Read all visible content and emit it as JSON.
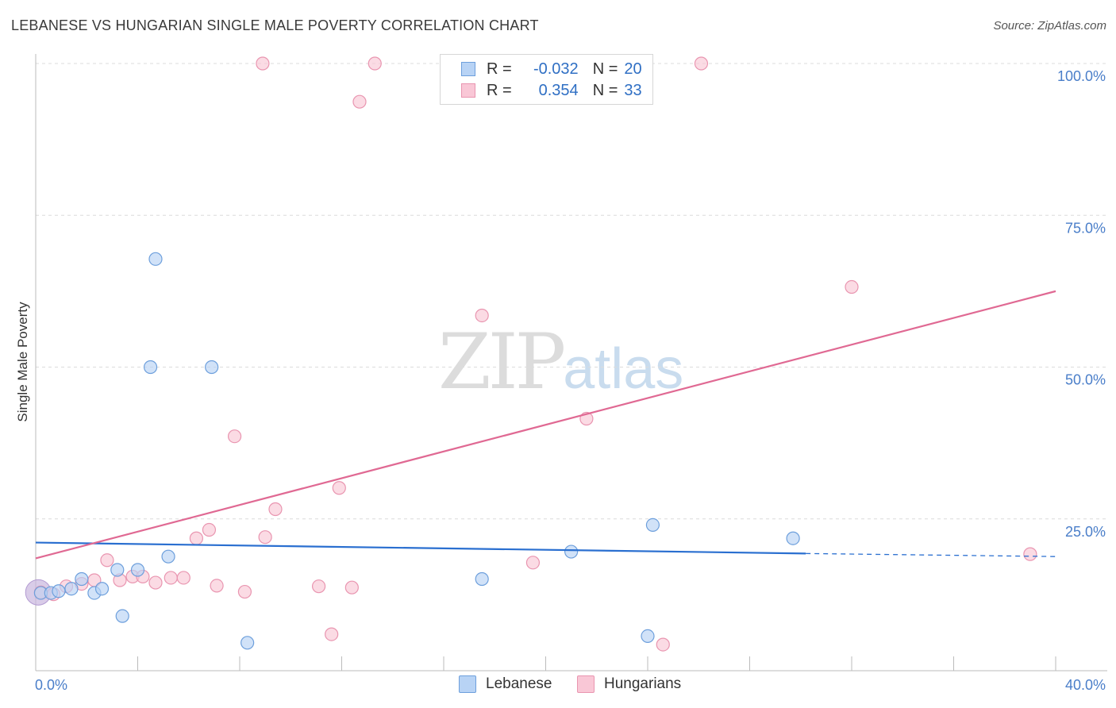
{
  "title": "LEBANESE VS HUNGARIAN SINGLE MALE POVERTY CORRELATION CHART",
  "source": "Source: ZipAtlas.com",
  "watermark": {
    "zip": "ZIP",
    "atlas": "atlas"
  },
  "colors": {
    "blue_fill": "#b8d3f5",
    "blue_stroke": "#6d9fdc",
    "blue_line": "#2a6fd0",
    "pink_fill": "#f9c7d6",
    "pink_stroke": "#e995b0",
    "pink_line": "#e06993",
    "axis_text": "#4a7ec9"
  },
  "legend": {
    "rows": [
      {
        "r_label": "R =",
        "r_value": "-0.032",
        "n_label": "N =",
        "n_value": "20",
        "series": "blue"
      },
      {
        "r_label": "R =",
        "r_value": "0.354",
        "n_label": "N =",
        "n_value": "33",
        "series": "pink"
      }
    ]
  },
  "bottom_legend": {
    "lebanese": "Lebanese",
    "hungarians": "Hungarians"
  },
  "chart_data": {
    "type": "scatter",
    "title": "LEBANESE VS HUNGARIAN SINGLE MALE POVERTY CORRELATION CHART",
    "xlabel": "",
    "ylabel": "Single Male Poverty",
    "xlim": [
      0,
      40
    ],
    "ylim": [
      0,
      100
    ],
    "x_tick_labels": [
      "0.0%",
      "40.0%"
    ],
    "y_ticks": [
      25,
      50,
      75,
      100
    ],
    "y_tick_labels": [
      "25.0%",
      "50.0%",
      "75.0%",
      "100.0%"
    ],
    "grid": true,
    "series": [
      {
        "name": "Lebanese",
        "color": "#b8d3f5",
        "points": [
          [
            0.2,
            12.8
          ],
          [
            0.6,
            12.8
          ],
          [
            0.9,
            13.1
          ],
          [
            1.4,
            13.5
          ],
          [
            1.8,
            15.1
          ],
          [
            2.3,
            12.8
          ],
          [
            2.6,
            13.5
          ],
          [
            3.2,
            16.6
          ],
          [
            3.4,
            9.0
          ],
          [
            4.0,
            16.6
          ],
          [
            4.5,
            50.0
          ],
          [
            4.7,
            67.8
          ],
          [
            5.2,
            18.8
          ],
          [
            6.9,
            50.0
          ],
          [
            8.3,
            4.6
          ],
          [
            17.5,
            15.1
          ],
          [
            21.0,
            19.6
          ],
          [
            24.0,
            5.7
          ],
          [
            24.2,
            24.0
          ],
          [
            29.7,
            21.8
          ]
        ]
      },
      {
        "name": "Hungarians",
        "color": "#f9c7d6",
        "points": [
          [
            0.2,
            12.9
          ],
          [
            0.7,
            12.6
          ],
          [
            1.2,
            13.9
          ],
          [
            1.8,
            14.3
          ],
          [
            2.3,
            14.9
          ],
          [
            2.8,
            18.2
          ],
          [
            3.3,
            14.9
          ],
          [
            3.8,
            15.5
          ],
          [
            4.2,
            15.5
          ],
          [
            4.7,
            14.5
          ],
          [
            5.3,
            15.3
          ],
          [
            5.8,
            15.3
          ],
          [
            6.3,
            21.8
          ],
          [
            6.8,
            23.2
          ],
          [
            7.1,
            14.0
          ],
          [
            7.8,
            38.6
          ],
          [
            8.2,
            13.0
          ],
          [
            9.0,
            22.0
          ],
          [
            9.4,
            26.6
          ],
          [
            8.9,
            100.0
          ],
          [
            11.1,
            13.9
          ],
          [
            11.6,
            6.0
          ],
          [
            11.9,
            30.1
          ],
          [
            12.4,
            13.7
          ],
          [
            12.7,
            93.7
          ],
          [
            13.3,
            100.0
          ],
          [
            17.5,
            58.5
          ],
          [
            19.5,
            17.8
          ],
          [
            21.6,
            41.5
          ],
          [
            24.6,
            4.3
          ],
          [
            26.1,
            100.0
          ],
          [
            32.0,
            63.2
          ],
          [
            39.0,
            19.2
          ]
        ]
      }
    ],
    "trend_lines": [
      {
        "series": "Lebanese",
        "x1": 0,
        "y1": 21.1,
        "x2": 30.2,
        "y2": 19.3,
        "dashed_to_x": 40.0,
        "dashed_to_y": 18.8
      },
      {
        "series": "Hungarians",
        "x1": 0,
        "y1": 18.5,
        "x2": 40.0,
        "y2": 62.5
      }
    ]
  }
}
